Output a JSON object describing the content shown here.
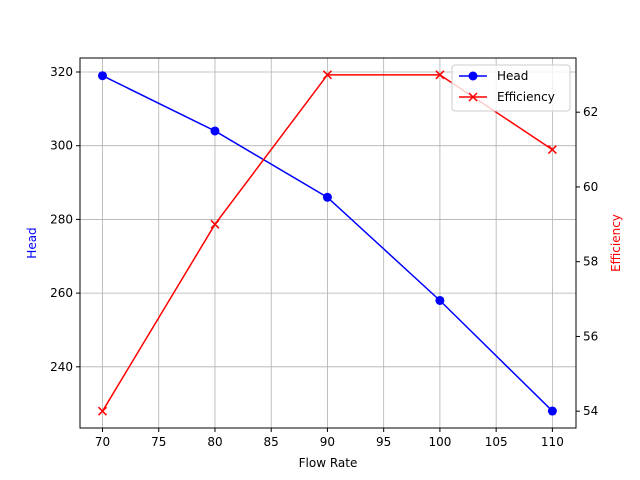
{
  "chart_data": {
    "type": "line",
    "title": "",
    "xlabel": "Flow Rate",
    "ylabel_left": "Head",
    "ylabel_right": "Efficiency",
    "x": [
      70,
      80,
      90,
      100,
      110
    ],
    "xticks": [
      70,
      75,
      80,
      85,
      90,
      95,
      100,
      105,
      110
    ],
    "xlim": [
      68,
      112.1
    ],
    "yticks_left": [
      240,
      260,
      280,
      300,
      320
    ],
    "ylim_left": [
      223.4,
      323.8
    ],
    "yticks_right": [
      54,
      56,
      58,
      60,
      62
    ],
    "ylim_right": [
      53.55,
      63.45
    ],
    "grid": true,
    "legend_position": "upper right",
    "series": [
      {
        "name": "Head",
        "axis": "left",
        "color": "#0000ff",
        "marker": "circle",
        "values": [
          319,
          304,
          286,
          258,
          228
        ]
      },
      {
        "name": "Efficiency",
        "axis": "right",
        "color": "#ff0000",
        "marker": "x",
        "values": [
          54,
          59,
          63,
          63,
          61
        ]
      }
    ]
  }
}
